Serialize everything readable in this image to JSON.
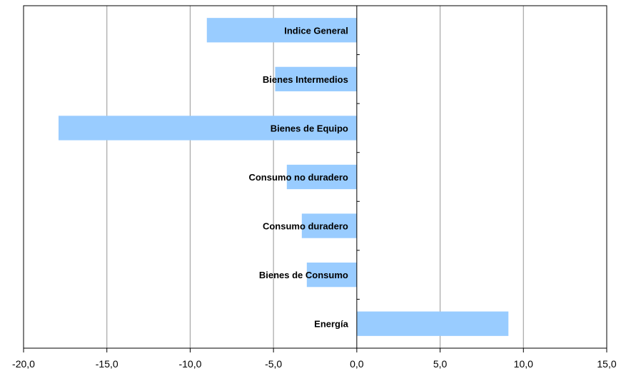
{
  "chart_data": {
    "type": "bar",
    "orientation": "horizontal",
    "categories": [
      "Indice General",
      "Bienes Intermedios",
      "Bienes de Equipo",
      "Consumo no duradero",
      "Consumo duradero",
      "Bienes de Consumo",
      "Energía"
    ],
    "values": [
      -9.0,
      -4.9,
      -17.9,
      -4.2,
      -3.3,
      -3.0,
      9.1
    ],
    "xlim": [
      -20,
      15
    ],
    "xticks": [
      -20,
      -15,
      -10,
      -5,
      0,
      5,
      10,
      15
    ],
    "xtick_labels": [
      "-20,0",
      "-15,0",
      "-10,0",
      "-5,0",
      "0,0",
      "5,0",
      "10,0",
      "15,0"
    ],
    "grid": "vertical",
    "legend": "none",
    "title": "",
    "xlabel": "",
    "ylabel": "",
    "colors": {
      "bar": "#99ccff",
      "grid": "#a6a6a6",
      "frame": "#000000"
    }
  }
}
